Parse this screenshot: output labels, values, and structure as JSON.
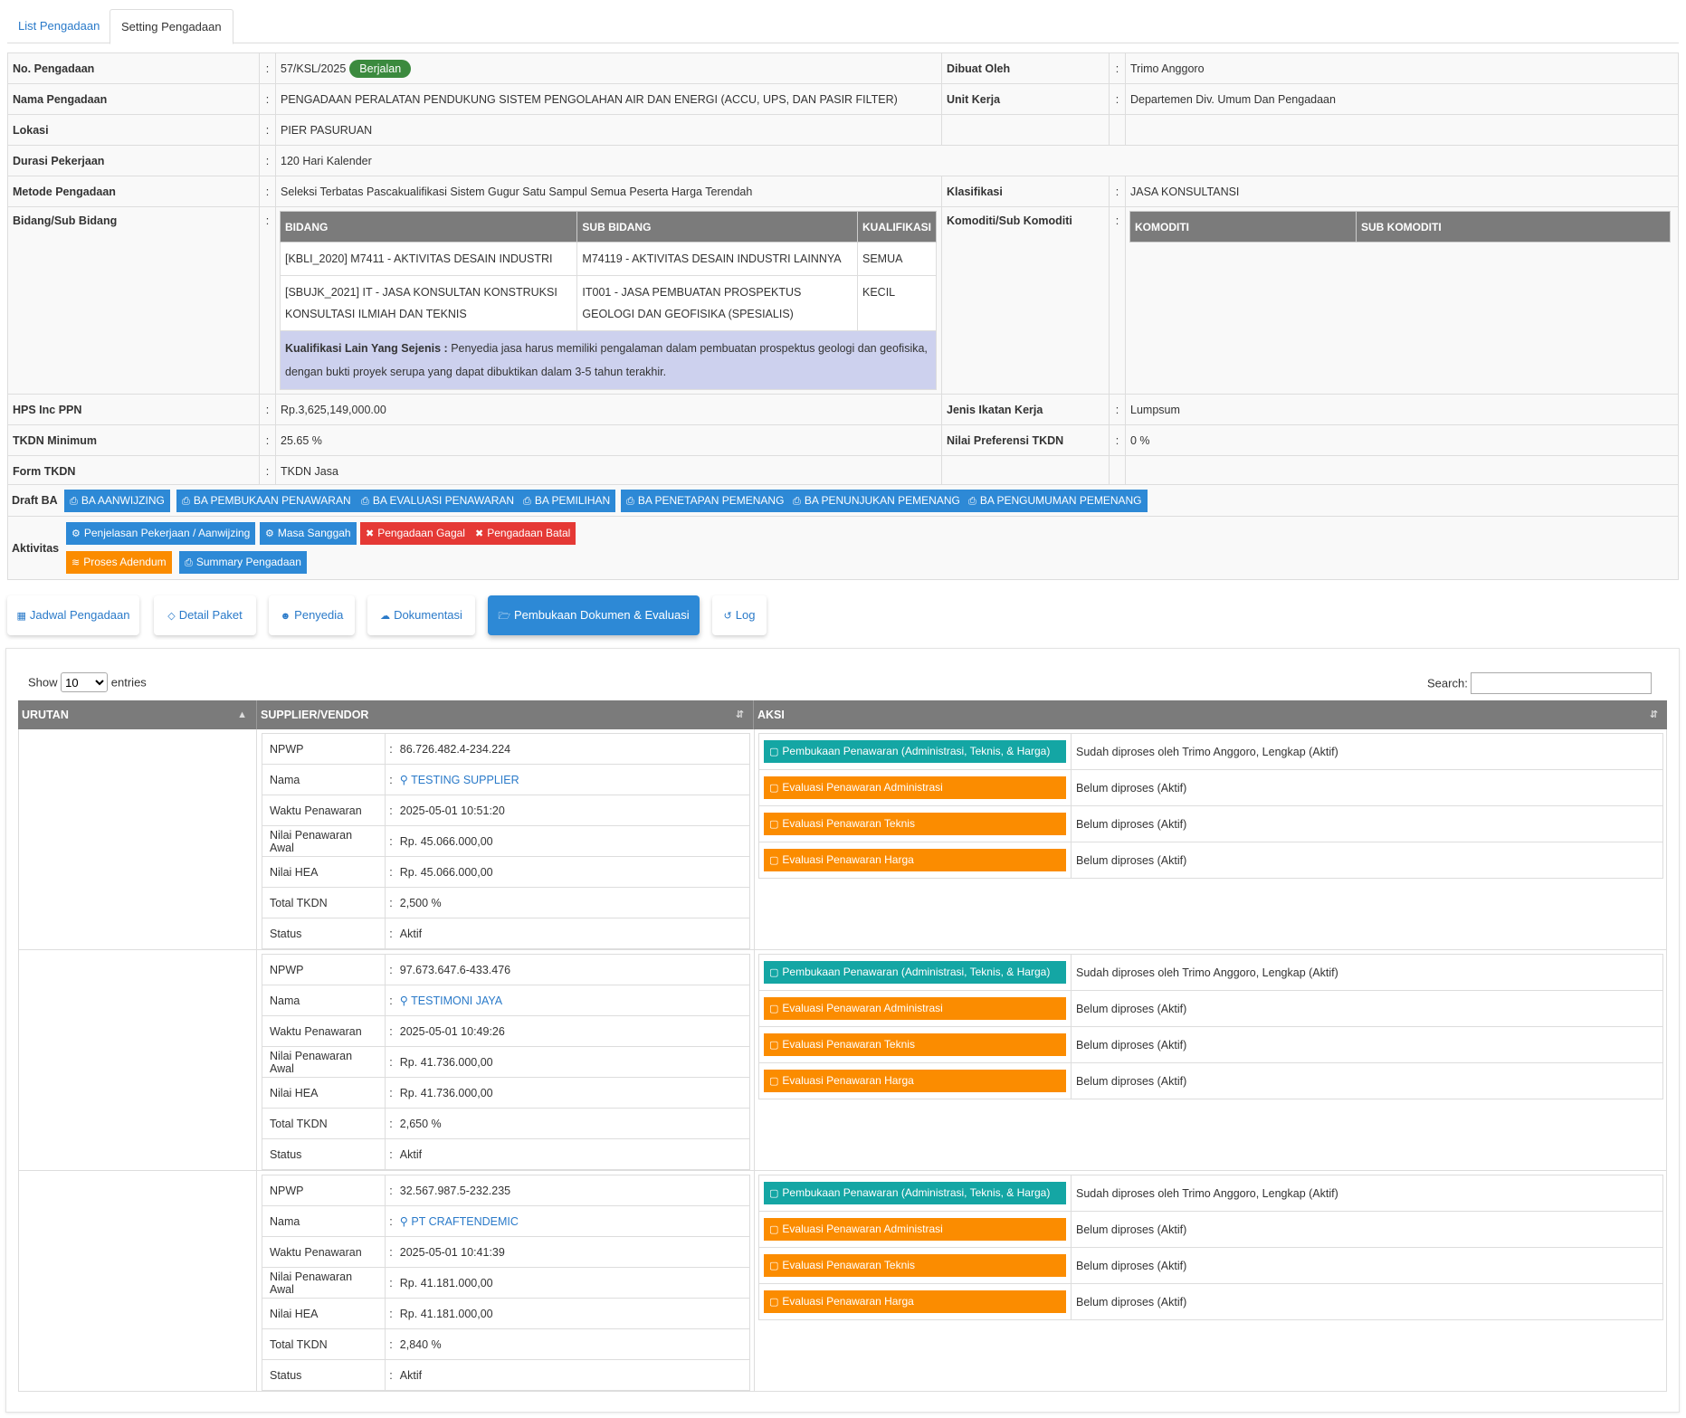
{
  "tabs": [
    {
      "label": "List Pengadaan"
    },
    {
      "label": "Setting Pengadaan"
    }
  ],
  "info": {
    "no_label": "No. Pengadaan",
    "no_value": "57/KSL/2025",
    "status_badge": "Berjalan",
    "dibuat_label": "Dibuat Oleh",
    "dibuat_value": "Trimo Anggoro",
    "nama_label": "Nama Pengadaan",
    "nama_value": "PENGADAAN PERALATAN PENDUKUNG SISTEM PENGOLAHAN AIR DAN ENERGI (ACCU, UPS, DAN PASIR FILTER)",
    "unit_label": "Unit Kerja",
    "unit_value": "Departemen Div. Umum Dan Pengadaan",
    "lokasi_label": "Lokasi",
    "lokasi_value": "PIER PASURUAN",
    "durasi_label": "Durasi Pekerjaan",
    "durasi_value": "120 Hari Kalender",
    "metode_label": "Metode Pengadaan",
    "metode_value": "Seleksi Terbatas Pascakualifikasi Sistem Gugur Satu Sampul Semua Peserta Harga Terendah",
    "klasifikasi_label": "Klasifikasi",
    "klasifikasi_value": "JASA KONSULTANSI",
    "bidang_label": "Bidang/Sub Bidang",
    "komoditi_label": "Komoditi/Sub Komoditi",
    "hps_label": "HPS Inc PPN",
    "hps_value": "Rp.3,625,149,000.00",
    "jenis_label": "Jenis Ikatan Kerja",
    "jenis_value": "Lumpsum",
    "tkdn_min_label": "TKDN Minimum",
    "tkdn_min_value": "25.65 %",
    "pref_label": "Nilai Preferensi TKDN",
    "pref_value": "0 %",
    "form_label": "Form TKDN",
    "form_value": "TKDN Jasa",
    "colon": ":"
  },
  "bidang_table": {
    "headers": [
      "BIDANG",
      "SUB BIDANG",
      "KUALIFIKASI"
    ],
    "rows": [
      [
        "[KBLI_2020] M7411 - AKTIVITAS DESAIN INDUSTRI",
        "M74119 - AKTIVITAS DESAIN INDUSTRI LAINNYA",
        "SEMUA"
      ],
      [
        "[SBUJK_2021] IT - JASA KONSULTAN KONSTRUKSI KONSULTASI ILMIAH DAN TEKNIS",
        "IT001 - JASA PEMBUATAN PROSPEKTUS GEOLOGI DAN GEOFISIKA (SPESIALIS)",
        "KECIL"
      ]
    ],
    "note_label": "Kualifikasi Lain Yang Sejenis :",
    "note_text": "Penyedia jasa harus memiliki pengalaman dalam pembuatan prospektus geologi dan geofisika, dengan bukti proyek serupa yang dapat dibuktikan dalam 3-5 tahun terakhir."
  },
  "komoditi_table": {
    "headers": [
      "KOMODITI",
      "SUB KOMODITI"
    ]
  },
  "draft_ba": {
    "label": "Draft BA",
    "buttons": [
      "BA AANWIJZING",
      "BA PEMBUKAAN PENAWARAN",
      "BA EVALUASI PENAWARAN",
      "BA PEMILIHAN",
      "BA PENETAPAN PEMENANG",
      "BA PENUNJUKAN PEMENANG",
      "BA PENGUMUMAN PEMENANG"
    ]
  },
  "aktivitas": {
    "label": "Aktivitas",
    "buttons": [
      "Penjelasan Pekerjaan / Aanwijzing",
      "Masa Sanggah",
      "Pengadaan Gagal",
      "Pengadaan Batal",
      "Proses Adendum",
      "Summary Pengadaan"
    ]
  },
  "nav": [
    "Jadwal Pengadaan",
    "Detail Paket",
    "Penyedia",
    "Dokumentasi",
    "Pembukaan Dokumen & Evaluasi",
    "Log"
  ],
  "table_ctrl": {
    "show": "Show",
    "entries_value": "10",
    "entries": "entries",
    "search": "Search:"
  },
  "columns": [
    "URUTAN",
    "SUPPLIER/VENDOR",
    "AKSI"
  ],
  "vendor_labels": [
    "NPWP",
    "Nama",
    "Waktu Penawaran",
    "Nilai Penawaran Awal",
    "Nilai HEA",
    "Total TKDN",
    "Status"
  ],
  "action_labels": [
    "Pembukaan Penawaran (Administrasi, Teknis, & Harga)",
    "Evaluasi Penawaran Administrasi",
    "Evaluasi Penawaran Teknis",
    "Evaluasi Penawaran Harga"
  ],
  "vendors": [
    {
      "npwp": "86.726.482.4-234.224",
      "nama": "TESTING SUPPLIER",
      "waktu": "2025-05-01 10:51:20",
      "nilai_awal": "Rp. 45.066.000,00",
      "hea": "Rp. 45.066.000,00",
      "tkdn": "2,500 %",
      "status": "Aktif",
      "actions": [
        "Sudah diproses oleh Trimo Anggoro, Lengkap (Aktif)",
        "Belum diproses (Aktif)",
        "Belum diproses (Aktif)",
        "Belum diproses (Aktif)"
      ]
    },
    {
      "npwp": "97.673.647.6-433.476",
      "nama": "TESTIMONI JAYA",
      "waktu": "2025-05-01 10:49:26",
      "nilai_awal": "Rp. 41.736.000,00",
      "hea": "Rp. 41.736.000,00",
      "tkdn": "2,650 %",
      "status": "Aktif",
      "actions": [
        "Sudah diproses oleh Trimo Anggoro, Lengkap (Aktif)",
        "Belum diproses (Aktif)",
        "Belum diproses (Aktif)",
        "Belum diproses (Aktif)"
      ]
    },
    {
      "npwp": "32.567.987.5-232.235",
      "nama": "PT CRAFTENDEMIC",
      "waktu": "2025-05-01 10:41:39",
      "nilai_awal": "Rp. 41.181.000,00",
      "hea": "Rp. 41.181.000,00",
      "tkdn": "2,840 %",
      "status": "Aktif",
      "actions": [
        "Sudah diproses oleh Trimo Anggoro, Lengkap (Aktif)",
        "Belum diproses (Aktif)",
        "Belum diproses (Aktif)",
        "Belum diproses (Aktif)"
      ]
    }
  ],
  "colors": {
    "primary": "#2d89d6",
    "danger": "#e53935",
    "warning": "#fb8c00",
    "teal": "#14a6a4",
    "success": "#3b8a3e"
  }
}
